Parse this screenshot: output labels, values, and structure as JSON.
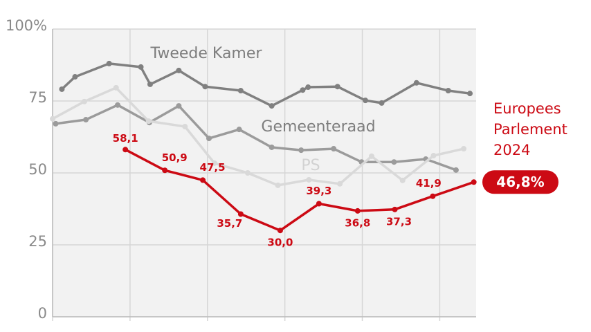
{
  "chart_data": {
    "type": "line",
    "xlim": [
      0,
      5.47
    ],
    "xticks": [
      0,
      1,
      2,
      3,
      4,
      5
    ],
    "ylim": [
      0,
      100
    ],
    "yticks": [
      0,
      25,
      50,
      75,
      {
        "value": 100,
        "label": "100%"
      }
    ],
    "grid": true,
    "series": [
      {
        "name": "Tweede Kamer",
        "color": "#808080",
        "x": [
          0.12,
          0.29,
          0.73,
          1.14,
          1.26,
          1.63,
          1.97,
          2.43,
          2.83,
          3.23,
          3.3,
          3.68,
          4.04,
          4.25,
          4.7,
          5.11,
          5.39
        ],
        "values": [
          79.1,
          83.4,
          88.0,
          86.8,
          80.8,
          85.6,
          80.0,
          78.6,
          73.3,
          78.8,
          79.8,
          80.0,
          75.2,
          74.3,
          81.3,
          78.6,
          77.6
        ]
      },
      {
        "name": "Gemeenteraad",
        "color": "#9b9b9b",
        "x": [
          0.04,
          0.43,
          0.84,
          1.25,
          1.63,
          2.02,
          2.41,
          2.83,
          3.21,
          3.63,
          3.99,
          4.41,
          4.82,
          5.21
        ],
        "values": [
          67.1,
          68.5,
          73.6,
          67.5,
          73.3,
          62.0,
          65.1,
          58.9,
          57.9,
          58.4,
          53.8,
          53.8,
          54.8,
          51.0
        ]
      },
      {
        "name": "PS",
        "color": "#d9d9d9",
        "x": [
          0,
          0.41,
          0.82,
          1.24,
          1.71,
          2.09,
          2.52,
          2.91,
          3.31,
          3.71,
          4.12,
          4.52,
          4.92,
          5.31
        ],
        "values": [
          68.8,
          74.8,
          79.6,
          68.0,
          66.1,
          53.4,
          50.0,
          45.7,
          47.6,
          46.2,
          55.8,
          47.4,
          56.0,
          58.4
        ]
      },
      {
        "name": "Europees Parlement 2024",
        "color": "#cc0a14",
        "x": [
          0.94,
          1.45,
          1.94,
          2.43,
          2.94,
          3.44,
          3.94,
          4.42,
          4.91,
          5.44
        ],
        "values": [
          58.1,
          50.9,
          47.5,
          35.7,
          30.0,
          39.3,
          36.8,
          37.3,
          41.9,
          46.8
        ],
        "value_labels": [
          "58,1",
          "50,9",
          "47,5",
          "35,7",
          "30,0",
          "39,3",
          "36,8",
          "37,3",
          "41,9",
          "46,8%"
        ]
      }
    ]
  }
}
